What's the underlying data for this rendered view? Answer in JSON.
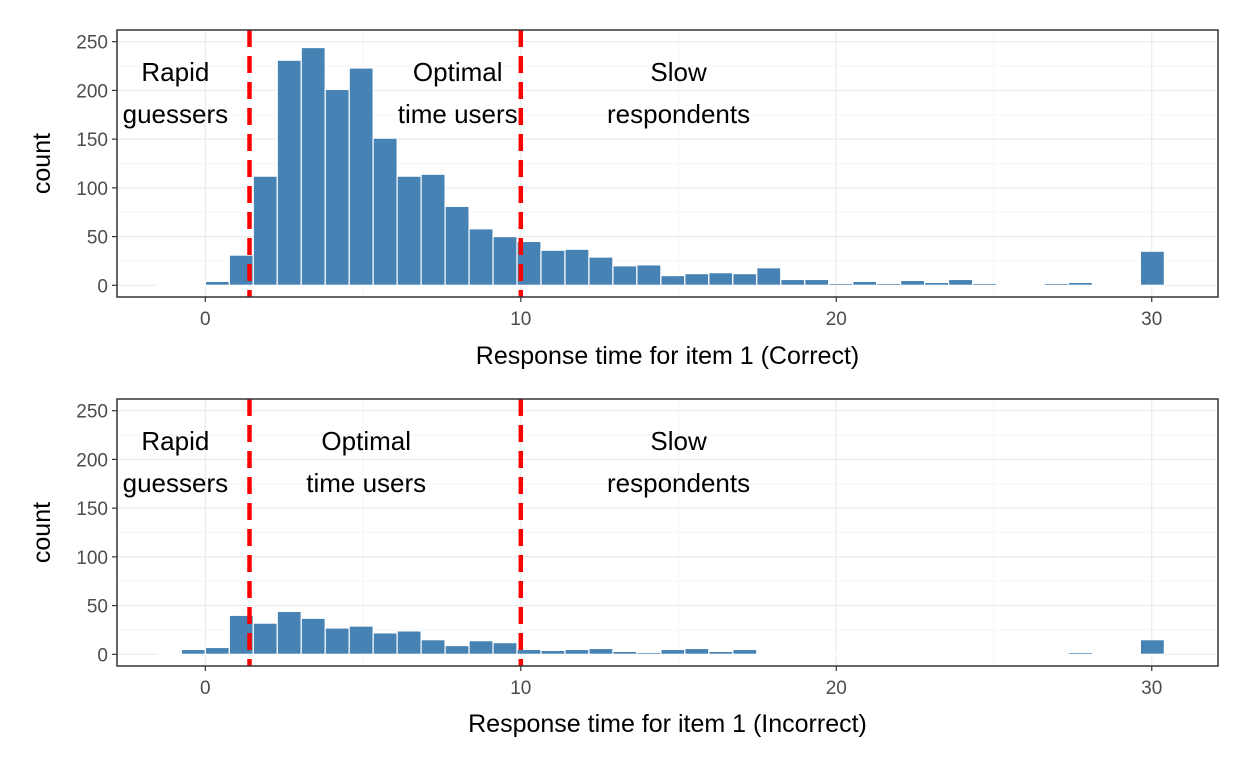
{
  "colors": {
    "bar_fill": "#4682b4",
    "cutoff_line": "#ff0000",
    "panel_border": "#333333",
    "grid_major": "#ebebeb",
    "grid_minor": "#f5f5f5",
    "tick_text": "#4d4d4d"
  },
  "chart_data": [
    {
      "type": "bar",
      "subtype": "histogram",
      "xlabel": "Response time for item 1 (Correct)",
      "ylabel": "count",
      "xlim": [
        -2.8,
        32.1
      ],
      "ylim": [
        -12,
        262
      ],
      "xticks": [
        0,
        10,
        20,
        30
      ],
      "yticks": [
        0,
        50,
        100,
        150,
        200,
        250
      ],
      "grid": true,
      "bin_width": 0.76,
      "bin_centers": [
        -1.14,
        -0.38,
        0.38,
        1.14,
        1.9,
        2.66,
        3.42,
        4.18,
        4.94,
        5.7,
        6.46,
        7.22,
        7.98,
        8.74,
        9.5,
        10.26,
        11.02,
        11.78,
        12.54,
        13.3,
        14.06,
        14.82,
        15.58,
        16.34,
        17.1,
        17.86,
        18.62,
        19.38,
        20.14,
        20.9,
        21.66,
        22.42,
        23.18,
        23.94,
        24.7,
        25.46,
        26.22,
        26.98,
        27.74,
        28.5,
        29.26,
        30.02
      ],
      "values": [
        0,
        0,
        4,
        31,
        112,
        231,
        244,
        201,
        223,
        151,
        112,
        114,
        81,
        58,
        50,
        45,
        36,
        37,
        29,
        20,
        21,
        10,
        12,
        13,
        12,
        18,
        6,
        6,
        2,
        4,
        2,
        5,
        3,
        6,
        2,
        0,
        0,
        2,
        3,
        0,
        0,
        35
      ],
      "cutoff_lines": [
        1.4,
        10
      ],
      "annotations": [
        {
          "lines": [
            "Rapid",
            "guessers"
          ],
          "x": -0.95
        },
        {
          "lines": [
            "Optimal",
            "time users"
          ],
          "x": 8.0
        },
        {
          "lines": [
            "Slow",
            "respondents"
          ],
          "x": 15.0
        }
      ]
    },
    {
      "type": "bar",
      "subtype": "histogram",
      "xlabel": "Response time for item 1 (Incorrect)",
      "ylabel": "count",
      "xlim": [
        -2.8,
        32.1
      ],
      "ylim": [
        -12,
        262
      ],
      "xticks": [
        0,
        10,
        20,
        30
      ],
      "yticks": [
        0,
        50,
        100,
        150,
        200,
        250
      ],
      "grid": true,
      "bin_width": 0.76,
      "bin_centers": [
        -1.14,
        -0.38,
        0.38,
        1.14,
        1.9,
        2.66,
        3.42,
        4.18,
        4.94,
        5.7,
        6.46,
        7.22,
        7.98,
        8.74,
        9.5,
        10.26,
        11.02,
        11.78,
        12.54,
        13.3,
        14.06,
        14.82,
        15.58,
        16.34,
        17.1,
        17.86,
        18.62,
        19.38,
        20.14,
        20.9,
        21.66,
        22.42,
        23.18,
        23.94,
        24.7,
        25.46,
        26.22,
        26.98,
        27.74,
        28.5,
        29.26,
        30.02
      ],
      "values": [
        0,
        5,
        7,
        40,
        32,
        44,
        37,
        27,
        29,
        22,
        24,
        15,
        9,
        14,
        12,
        5,
        4,
        5,
        6,
        3,
        2,
        5,
        6,
        3,
        5,
        0,
        0,
        1,
        1,
        1,
        0,
        1,
        0,
        1,
        0,
        0,
        0,
        0,
        2,
        0,
        0,
        15
      ],
      "cutoff_lines": [
        1.4,
        10
      ],
      "annotations": [
        {
          "lines": [
            "Rapid",
            "guessers"
          ],
          "x": -0.95
        },
        {
          "lines": [
            "Optimal",
            "time users"
          ],
          "x": 5.1
        },
        {
          "lines": [
            "Slow",
            "respondents"
          ],
          "x": 15.0
        }
      ]
    }
  ]
}
